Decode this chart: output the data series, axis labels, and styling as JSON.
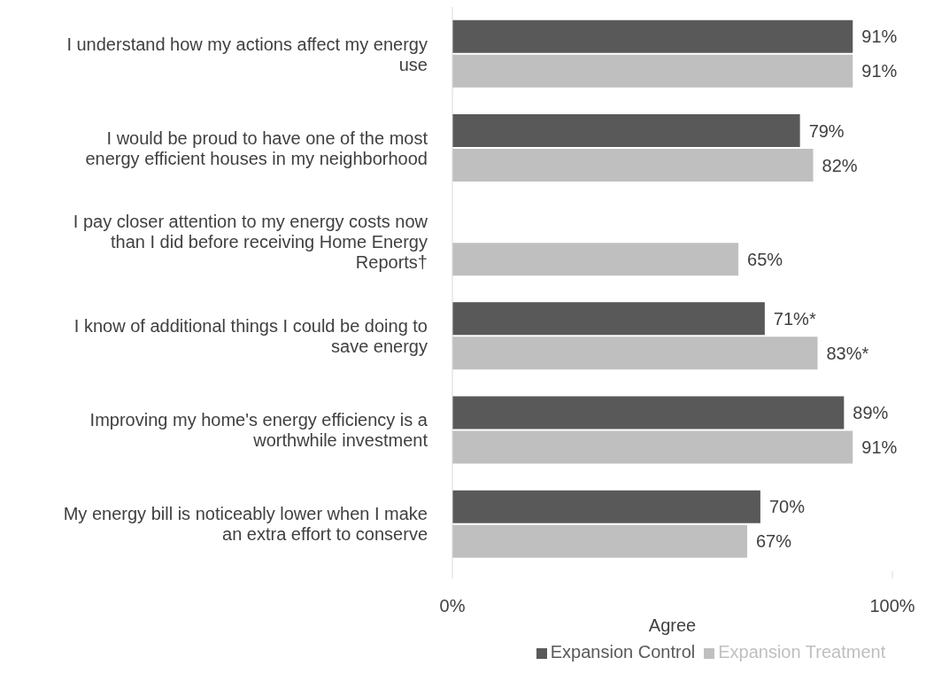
{
  "chart_data": {
    "type": "bar",
    "orientation": "horizontal",
    "xlabel": "Agree",
    "categories": [
      "I understand how my actions affect my energy use",
      "I would be proud to have one of the most energy efficient houses in my neighborhood",
      "I pay closer attention to my energy costs now than I did before receiving Home Energy Reports†",
      "I know of additional things I could be doing to save energy",
      "Improving my home's energy efficiency is a worthwhile investment",
      "My energy bill is noticeably lower when I make an extra effort to conserve"
    ],
    "series": [
      {
        "name": "Expansion Control",
        "color": "#595959",
        "values": [
          91,
          79,
          null,
          71,
          89,
          70
        ],
        "value_labels": [
          "91%",
          "79%",
          null,
          "71%*",
          "89%",
          "70%"
        ]
      },
      {
        "name": "Expansion Treatment",
        "color": "#bfbfbf",
        "values": [
          91,
          82,
          65,
          83,
          91,
          67
        ],
        "value_labels": [
          "91%",
          "82%",
          "65%",
          "83%*",
          "91%",
          "67%"
        ]
      }
    ],
    "xlim": [
      0,
      100
    ],
    "xticks": [
      {
        "value": 0,
        "label": "0%"
      },
      {
        "value": 100,
        "label": "100%"
      }
    ],
    "grid": false,
    "legend": "bottom"
  }
}
